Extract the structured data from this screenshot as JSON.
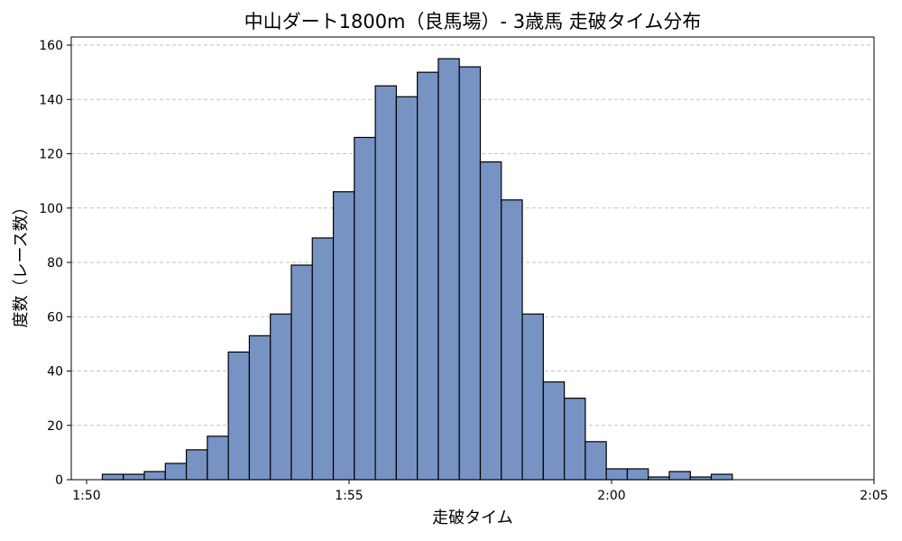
{
  "chart_data": {
    "type": "bar",
    "title": "中山ダート1800m（良馬場）- 3歳馬 走破タイム分布",
    "xlabel": "走破タイム",
    "ylabel": "度数（レース数）",
    "x_unit": "seconds",
    "xlim": [
      110,
      125
    ],
    "ylim": [
      0,
      163
    ],
    "x_ticks": [
      {
        "value": 110,
        "label": "1:50"
      },
      {
        "value": 115,
        "label": "1:55"
      },
      {
        "value": 120,
        "label": "2:00"
      },
      {
        "value": 125,
        "label": "2:05"
      }
    ],
    "y_ticks": [
      0,
      20,
      40,
      60,
      80,
      100,
      120,
      140,
      160
    ],
    "grid": "y",
    "bin_edges": [
      110.3,
      110.7,
      111.1,
      111.5,
      111.9,
      112.3,
      112.7,
      113.1,
      113.5,
      113.9,
      114.3,
      114.7,
      115.1,
      115.5,
      115.9,
      116.3,
      116.7,
      117.1,
      117.5,
      117.9,
      118.3,
      118.7,
      119.1,
      119.5,
      119.9,
      120.3,
      120.7,
      121.1,
      121.5,
      121.9,
      122.3
    ],
    "values": [
      2,
      2,
      3,
      6,
      11,
      16,
      47,
      53,
      61,
      79,
      89,
      106,
      126,
      145,
      141,
      150,
      155,
      152,
      117,
      103,
      61,
      36,
      30,
      14,
      4,
      4,
      1,
      3,
      1,
      2
    ],
    "colors": {
      "bar": "#7793c4",
      "edge": "#000000"
    }
  }
}
